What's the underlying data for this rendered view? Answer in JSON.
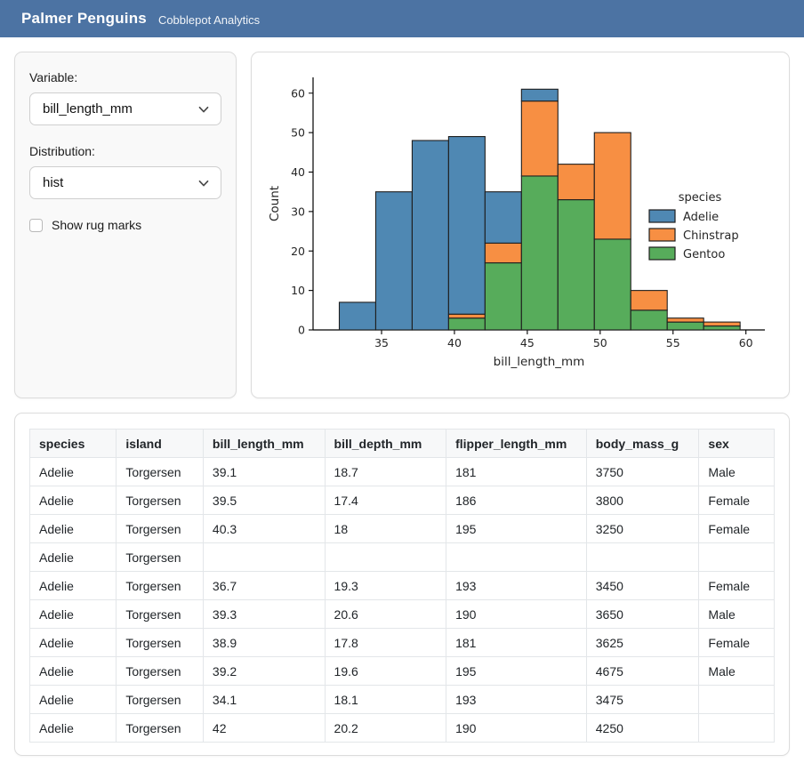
{
  "colors": {
    "header_bg": "#4c73a3",
    "adelie": "#4f88b3",
    "chinstrap": "#f78f43",
    "gentoo": "#57ac5b",
    "bar_edge": "#1f1f1f"
  },
  "header": {
    "title": "Palmer Penguins",
    "subtitle": "Cobblepot Analytics"
  },
  "sidebar": {
    "variable_label": "Variable:",
    "variable_value": "bill_length_mm",
    "distribution_label": "Distribution:",
    "distribution_value": "hist",
    "rug_label": "Show rug marks",
    "rug_checked": false
  },
  "chart_data": {
    "type": "bar",
    "subtype": "stacked_histogram",
    "title": "",
    "xlabel": "bill_length_mm",
    "ylabel": "Count",
    "bin_edges": [
      32.1,
      34.6,
      37.1,
      39.6,
      42.1,
      44.6,
      47.1,
      49.6,
      52.1,
      54.6,
      57.1,
      59.6
    ],
    "series": [
      {
        "name": "Gentoo",
        "color": "#57ac5b",
        "values": [
          0,
          0,
          0,
          3,
          17,
          39,
          33,
          23,
          5,
          2,
          1
        ]
      },
      {
        "name": "Chinstrap",
        "color": "#f78f43",
        "values": [
          0,
          0,
          0,
          1,
          5,
          19,
          9,
          27,
          5,
          1,
          1
        ]
      },
      {
        "name": "Adelie",
        "color": "#4f88b3",
        "values": [
          7,
          35,
          48,
          45,
          13,
          3,
          0,
          0,
          0,
          0,
          0
        ]
      }
    ],
    "bin_totals": [
      7,
      35,
      48,
      49,
      35,
      61,
      42,
      50,
      10,
      3,
      2
    ],
    "xticks": [
      35,
      40,
      45,
      50,
      55,
      60
    ],
    "yticks": [
      0,
      10,
      20,
      30,
      40,
      50,
      60
    ],
    "xlim": [
      30.3,
      61.3
    ],
    "ylim": [
      0,
      64
    ],
    "grid": false,
    "legend": {
      "title": "species",
      "position": "center right",
      "entries": [
        {
          "label": "Adelie",
          "color": "#4f88b3"
        },
        {
          "label": "Chinstrap",
          "color": "#f78f43"
        },
        {
          "label": "Gentoo",
          "color": "#57ac5b"
        }
      ]
    }
  },
  "table": {
    "columns": [
      "species",
      "island",
      "bill_length_mm",
      "bill_depth_mm",
      "flipper_length_mm",
      "body_mass_g",
      "sex"
    ],
    "rows": [
      [
        "Adelie",
        "Torgersen",
        "39.1",
        "18.7",
        "181",
        "3750",
        "Male"
      ],
      [
        "Adelie",
        "Torgersen",
        "39.5",
        "17.4",
        "186",
        "3800",
        "Female"
      ],
      [
        "Adelie",
        "Torgersen",
        "40.3",
        "18",
        "195",
        "3250",
        "Female"
      ],
      [
        "Adelie",
        "Torgersen",
        "",
        "",
        "",
        "",
        ""
      ],
      [
        "Adelie",
        "Torgersen",
        "36.7",
        "19.3",
        "193",
        "3450",
        "Female"
      ],
      [
        "Adelie",
        "Torgersen",
        "39.3",
        "20.6",
        "190",
        "3650",
        "Male"
      ],
      [
        "Adelie",
        "Torgersen",
        "38.9",
        "17.8",
        "181",
        "3625",
        "Female"
      ],
      [
        "Adelie",
        "Torgersen",
        "39.2",
        "19.6",
        "195",
        "4675",
        "Male"
      ],
      [
        "Adelie",
        "Torgersen",
        "34.1",
        "18.1",
        "193",
        "3475",
        ""
      ],
      [
        "Adelie",
        "Torgersen",
        "42",
        "20.2",
        "190",
        "4250",
        ""
      ]
    ]
  }
}
